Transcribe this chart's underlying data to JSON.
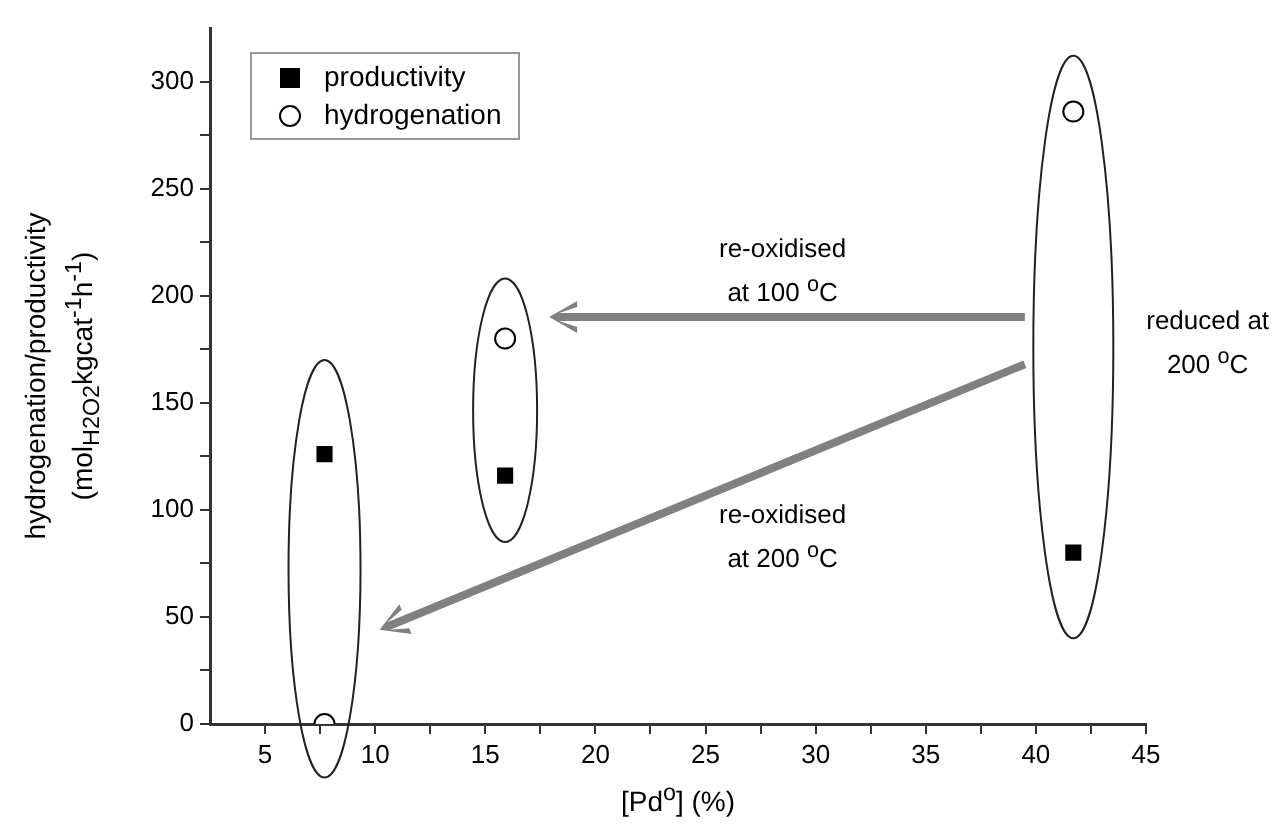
{
  "chart_data": {
    "type": "scatter",
    "xlabel": "[Pd$^{o}$] (%)",
    "ylabel": "hydrogenation/productivity\n(mol$_{H2O2}$kgcat$^{-1}$h$^{-1}$)",
    "xlim": [
      2.5,
      45
    ],
    "ylim": [
      0,
      325
    ],
    "xticks": [
      5,
      {
        "value": 7.5,
        "label": null
      },
      10,
      {
        "value": 12.5,
        "label": null
      },
      15,
      {
        "value": 17.5,
        "label": null
      },
      20,
      {
        "value": 22.5,
        "label": null
      },
      25,
      {
        "value": 27.5,
        "label": null
      },
      30,
      {
        "value": 32.5,
        "label": null
      },
      35,
      {
        "value": 37.5,
        "label": null
      },
      40,
      {
        "value": 42.5,
        "label": null
      },
      45
    ],
    "yticks": [
      0,
      {
        "value": 25,
        "label": null
      },
      50,
      {
        "value": 75,
        "label": null
      },
      100,
      {
        "value": 125,
        "label": null
      },
      150,
      {
        "value": 175,
        "label": null
      },
      200,
      {
        "value": 225,
        "label": null
      },
      250,
      {
        "value": 275,
        "label": null
      },
      300
    ],
    "x": [
      7.7,
      15.9,
      41.7
    ],
    "series": [
      {
        "name": "productivity",
        "color": "#000000",
        "marker": "square",
        "values": [
          126,
          116,
          80
        ]
      },
      {
        "name": "hydrogenation",
        "color": "#000000",
        "marker": "circle",
        "values": [
          0,
          180,
          286
        ]
      }
    ],
    "annotations": [
      "re-oxidised\nat 100 $^{o}$C",
      "re-oxidised\nat 200 $^{o}$C",
      "reduced at\n200 $^{o}$C"
    ],
    "grid": false,
    "legend": "top left"
  }
}
